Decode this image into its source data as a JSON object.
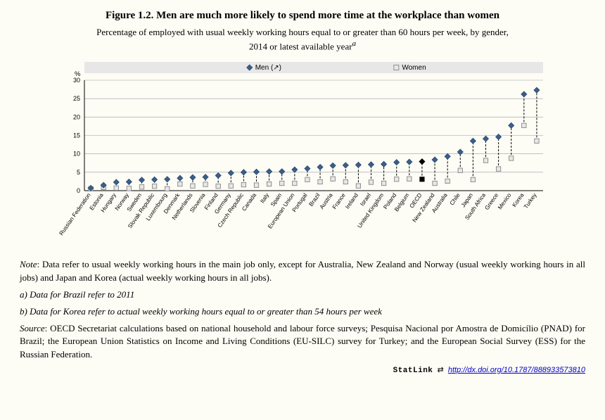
{
  "title": "Figure 1.2. Men are much more likely to spend more time at the workplace than women",
  "subtitle_line1": "Percentage of employed with usual weekly working hours equal to or greater than 60 hours per week, by gender,",
  "subtitle_line2": "2014 or latest available year",
  "subtitle_sup": "a",
  "legend": {
    "men": "Men (↗)",
    "women": "Women"
  },
  "y_axis_label": "%",
  "chart": {
    "type": "range-marker",
    "ylim": [
      0,
      30
    ],
    "ytick_step": 5,
    "background_color": "#ffffff",
    "gridline_color": "#9aa0a6",
    "legend_bg": "#e7e7e7",
    "men_marker": {
      "shape": "diamond",
      "fill": "#3a5f8a",
      "stroke": "#2b4a6f",
      "size": 7
    },
    "women_marker": {
      "shape": "square",
      "fill": "#e7e7e7",
      "stroke": "#7a7a7a",
      "size": 7
    },
    "oecd_marker_fill": "#000000",
    "connector": {
      "stroke": "#000000",
      "dash": "3,2",
      "width": 1
    },
    "axis_color": "#000000",
    "tick_fontsize": 9,
    "xlabel_fontsize": 8.2,
    "xlabel_rotation": -55,
    "countries": [
      {
        "name": "Russian Federation",
        "men": 0.7,
        "women": 0.5
      },
      {
        "name": "Estonia",
        "men": 1.5,
        "women": 0.9
      },
      {
        "name": "Hungary",
        "men": 2.3,
        "women": 0.7
      },
      {
        "name": "Norway",
        "men": 2.4,
        "women": 0.6
      },
      {
        "name": "Sweden",
        "men": 2.9,
        "women": 1.0
      },
      {
        "name": "Slovak Republic",
        "men": 3.0,
        "women": 1.2
      },
      {
        "name": "Luxembourg",
        "men": 3.1,
        "women": 0.5
      },
      {
        "name": "Denmark",
        "men": 3.4,
        "women": 1.8
      },
      {
        "name": "Netherlands",
        "men": 3.6,
        "women": 1.3
      },
      {
        "name": "Slovenia",
        "men": 3.7,
        "women": 1.7
      },
      {
        "name": "Finland",
        "men": 4.1,
        "women": 1.2
      },
      {
        "name": "Germany",
        "men": 4.8,
        "women": 1.3
      },
      {
        "name": "Czech Republic",
        "men": 5.0,
        "women": 1.6
      },
      {
        "name": "Canada",
        "men": 5.1,
        "women": 1.5
      },
      {
        "name": "Italy",
        "men": 5.2,
        "women": 1.8
      },
      {
        "name": "Spain",
        "men": 5.2,
        "women": 2.0
      },
      {
        "name": "European Union",
        "men": 5.7,
        "women": 2.0
      },
      {
        "name": "Portugal",
        "men": 6.0,
        "women": 3.0
      },
      {
        "name": "Brazil",
        "men": 6.4,
        "women": 2.4
      },
      {
        "name": "Austria",
        "men": 6.8,
        "women": 3.2
      },
      {
        "name": "France",
        "men": 6.9,
        "women": 2.4
      },
      {
        "name": "Ireland",
        "men": 7.0,
        "women": 1.3
      },
      {
        "name": "Israel",
        "men": 7.1,
        "women": 2.3
      },
      {
        "name": "United Kingdom",
        "men": 7.2,
        "women": 2.0
      },
      {
        "name": "Poland",
        "men": 7.7,
        "women": 3.1
      },
      {
        "name": "Belgium",
        "men": 7.8,
        "women": 3.2
      },
      {
        "name": "OECD",
        "men": 7.9,
        "women": 3.1,
        "highlight": true
      },
      {
        "name": "New Zealand",
        "men": 8.4,
        "women": 2.0
      },
      {
        "name": "Australia",
        "men": 9.3,
        "women": 2.6
      },
      {
        "name": "Chile",
        "men": 10.5,
        "women": 5.5
      },
      {
        "name": "Japan",
        "men": 13.5,
        "women": 3.0
      },
      {
        "name": "South Africa",
        "men": 14.1,
        "women": 8.2
      },
      {
        "name": "Greece",
        "men": 14.6,
        "women": 5.9
      },
      {
        "name": "Mexico",
        "men": 17.7,
        "women": 8.8
      },
      {
        "name": "Korea",
        "men": 26.2,
        "women": 17.7
      },
      {
        "name": "Turkey",
        "men": 27.3,
        "women": 13.5
      }
    ]
  },
  "notes": {
    "note": "Note: Data refer to usual weekly working hours in the main job only, except for Australia, New Zealand and Norway (usual weekly working hours in all jobs) and Japan and Korea (actual weekly working hours in all jobs).",
    "a": "a) Data for Brazil refer to 2011",
    "b": "b) Data for Korea refer to actual weekly working hours equal to or greater than 54 hours per week",
    "source": "Source: OECD Secretariat calculations based on national household and labour force surveys; Pesquisa Nacional por Amostra de Domicílio (PNAD) for Brazil; the European Union Statistics on Income and Living Conditions (EU-SILC) survey for Turkey; and the European Social Survey (ESS) for the Russian Federation."
  },
  "statlink": {
    "brand": "StatLink",
    "glyph": "🔗",
    "url_text": "http://dx.doi.org/10.1787/888933573810"
  }
}
